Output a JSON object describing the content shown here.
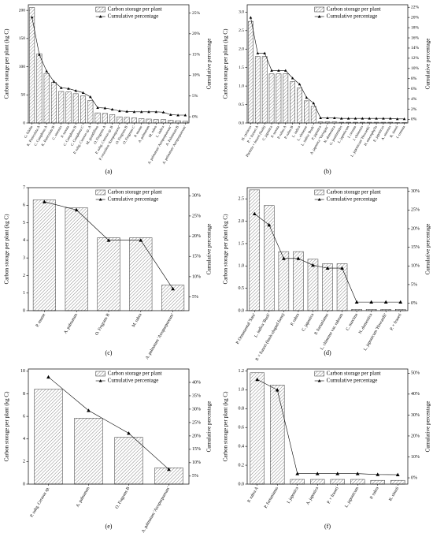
{
  "chart_data": [
    {
      "type": "bar-line",
      "caption": "(a)",
      "y_label": "Carbon storage per plant (kg C)",
      "y2_label": "Cumulative percentage",
      "categories": [
        "G. biloba",
        "K. Paniculata A",
        "C. Camphora A",
        "K. Paniculata B",
        "C. sinensis",
        "P. serrata",
        "C. Camphora B",
        "C. Camphora C",
        "P. subg. Cerasus sp. A",
        "M. grandiflora",
        "O. Fragrans A",
        "P. subg. Cerasus sp. B",
        "P. cerasifera 'Atropurpurea'",
        "O. Fragrans B",
        "O. Fragrans C",
        "P. mume",
        "A. palmatum",
        "M. rubra",
        "L. indica",
        "A. palmatum 'Atropurpureum'",
        "A. Palmatum B",
        "A. palmatum 'Atropurpureum'"
      ],
      "series": [
        {
          "name": "Carbon storage per plant",
          "color": "#555555",
          "values": [
            205,
            123,
            88,
            72,
            56,
            55,
            52,
            48,
            40,
            18,
            17,
            15,
            11,
            10,
            9,
            8,
            7,
            6,
            6,
            5,
            4,
            3
          ]
        },
        {
          "name": "Cumulative percentage",
          "color": "#000000",
          "axis": "y2",
          "values": [
            24,
            15,
            11,
            8.5,
            7,
            6.8,
            6.3,
            5.8,
            4.8,
            2.2,
            2.1,
            1.8,
            1.4,
            1.3,
            1.2,
            1.2,
            1.2,
            1.2,
            1.1,
            0.5,
            0.4,
            0.4
          ]
        }
      ],
      "ylim": [
        0,
        210
      ],
      "yticks": [
        0,
        50,
        100,
        150,
        200
      ],
      "y2lim": [
        -1.5,
        27
      ],
      "y2ticks": [
        {
          "value": 0,
          "label": "0%"
        },
        {
          "value": 5,
          "label": "5%"
        },
        {
          "value": 10,
          "label": "10%"
        },
        {
          "value": 15,
          "label": "15%"
        },
        {
          "value": 20,
          "label": "20%"
        },
        {
          "value": 25,
          "label": "25%"
        }
      ]
    },
    {
      "type": "bar-line",
      "caption": "(b)",
      "y_label": "Carbon storage per plant (kg C)",
      "y2_label": "Cumulative percentage",
      "categories": [
        "H. syriacus",
        "P. × fraseri A",
        "Photinia × fraseri (bush)",
        "C. japonica",
        "P. serrata",
        "P. rubra A",
        "P. rubra B",
        "L. indica",
        "L. chinense",
        "L. indica 'Bush'",
        "P. japonica",
        "A. japonica 'Variegata'",
        "N. domestica",
        "G. jasminoides",
        "L. japonicum",
        "I. crenata",
        "J. chinensis",
        "L. japonicum 'Howardii'",
        "H. macrophylla",
        "E. japonicus",
        "A. sinensis",
        "R. simsii",
        "I. cornuta"
      ],
      "series": [
        {
          "name": "Carbon storage per plant",
          "color": "#555555",
          "values": [
            2.75,
            1.8,
            1.8,
            1.33,
            1.33,
            1.33,
            1.12,
            0.95,
            0.6,
            0.45,
            0.03,
            0.03,
            0.03,
            0.02,
            0.02,
            0.02,
            0.02,
            0.02,
            0.02,
            0.02,
            0.02,
            0.01,
            0.01
          ]
        },
        {
          "name": "Cumulative percentage",
          "color": "#000000",
          "axis": "y2",
          "values": [
            20,
            13,
            13,
            9.6,
            9.6,
            9.6,
            8.1,
            6.9,
            4.3,
            3.2,
            0.3,
            0.3,
            0.3,
            0.2,
            0.2,
            0.2,
            0.2,
            0.2,
            0.2,
            0.2,
            0.2,
            0.1,
            0.1
          ]
        }
      ],
      "ylim": [
        0,
        3.2
      ],
      "yticks": [
        {
          "value": 0,
          "label": "0.0"
        },
        0.5,
        {
          "value": 1,
          "label": "1.0"
        },
        1.5,
        {
          "value": 2,
          "label": "2.0"
        },
        2.5,
        {
          "value": 3,
          "label": "3.0"
        }
      ],
      "y2lim": [
        -0.7,
        22.5
      ],
      "y2ticks": [
        {
          "value": 0,
          "label": "0%"
        },
        {
          "value": 2,
          "label": "2%"
        },
        {
          "value": 4,
          "label": "4%"
        },
        {
          "value": 6,
          "label": "6%"
        },
        {
          "value": 8,
          "label": "8%"
        },
        {
          "value": 10,
          "label": "10%"
        },
        {
          "value": 12,
          "label": "12%"
        },
        {
          "value": 14,
          "label": "14%"
        },
        {
          "value": 16,
          "label": "16%"
        },
        {
          "value": 18,
          "label": "18%"
        },
        {
          "value": 20,
          "label": "20%"
        },
        {
          "value": 22,
          "label": "22%"
        }
      ]
    },
    {
      "type": "bar-line",
      "caption": "(c)",
      "y_label": "Carbon storage per plant (kg C)",
      "y2_label": "Cumulative percentage",
      "categories": [
        "P. mume",
        "A. palmatum",
        "O. Fragrans B",
        "M. rubra",
        "A. palmatum 'Atropurpureum'"
      ],
      "series": [
        {
          "name": "Carbon storage per plant",
          "color": "#555555",
          "values": [
            6.3,
            5.85,
            4.15,
            4.15,
            1.45
          ]
        },
        {
          "name": "Cumulative percentage",
          "color": "#000000",
          "axis": "y2",
          "values": [
            28.5,
            26.5,
            19,
            19,
            7
          ]
        }
      ],
      "ylim": [
        0,
        7
      ],
      "yticks": [
        0,
        1,
        2,
        3,
        4,
        5,
        6,
        7
      ],
      "y2lim": [
        1.6,
        32
      ],
      "y2ticks": [
        {
          "value": 5,
          "label": "5%"
        },
        {
          "value": 10,
          "label": "10%"
        },
        {
          "value": 15,
          "label": "15%"
        },
        {
          "value": 20,
          "label": "20%"
        },
        {
          "value": 25,
          "label": "25%"
        },
        {
          "value": 30,
          "label": "30%"
        }
      ]
    },
    {
      "type": "bar-line",
      "caption": "(d)",
      "y_label": "Carbon storage per plant (kg C)",
      "y2_label": "Cumulative percentage",
      "categories": [
        "P. Ornamental 'Sata'",
        "L. indica 'Bush'",
        "P. × fraseri (bush-shaped form)",
        "P. rubra",
        "C. japonica",
        "P. fortunianus",
        "L. chinense var. rubrum",
        "C. maxima",
        "N. domestica",
        "L. japonicum 'Howardii'",
        "P. × fraseri"
      ],
      "series": [
        {
          "name": "Carbon storage per plant",
          "color": "#555555",
          "values": [
            2.7,
            2.35,
            1.32,
            1.32,
            1.15,
            1.05,
            1.05,
            0.03,
            0.03,
            0.03,
            0.03
          ]
        },
        {
          "name": "Cumulative percentage",
          "color": "#000000",
          "axis": "y2",
          "values": [
            24,
            21,
            12,
            12,
            10.2,
            9.4,
            9.4,
            0.3,
            0.3,
            0.3,
            0.3
          ]
        }
      ],
      "ylim": [
        0,
        2.75
      ],
      "yticks": [
        {
          "value": 0,
          "label": "0.0"
        },
        0.5,
        {
          "value": 1,
          "label": "1.0"
        },
        1.5,
        {
          "value": 2,
          "label": "2.0"
        },
        2.5
      ],
      "y2lim": [
        -2,
        31
      ],
      "y2ticks": [
        {
          "value": 0,
          "label": "0%"
        },
        {
          "value": 5,
          "label": "5%"
        },
        {
          "value": 10,
          "label": "10%"
        },
        {
          "value": 15,
          "label": "15%"
        },
        {
          "value": 20,
          "label": "20%"
        },
        {
          "value": 25,
          "label": "25%"
        },
        {
          "value": 30,
          "label": "30%"
        }
      ]
    },
    {
      "type": "bar-line",
      "caption": "(e)",
      "y_label": "Carbon storage per plant (kg C)",
      "y2_label": "Cumulative percentage",
      "categories": [
        "P. subg. Cerasus sp.",
        "A. palmatum",
        "O. Fragrans B",
        "A. palmatum 'Atropurpureum'"
      ],
      "series": [
        {
          "name": "Carbon storage per plant",
          "color": "#555555",
          "values": [
            8.4,
            5.85,
            4.15,
            1.45
          ]
        },
        {
          "name": "Cumulative percentage",
          "color": "#000000",
          "axis": "y2",
          "values": [
            42,
            29.5,
            21,
            7.5
          ]
        }
      ],
      "ylim": [
        0,
        10.2
      ],
      "yticks": [
        0,
        2,
        4,
        6,
        8,
        10
      ],
      "y2lim": [
        2,
        45
      ],
      "y2ticks": [
        {
          "value": 5,
          "label": "5%"
        },
        {
          "value": 10,
          "label": "10%"
        },
        {
          "value": 15,
          "label": "15%"
        },
        {
          "value": 20,
          "label": "20%"
        },
        {
          "value": 25,
          "label": "25%"
        },
        {
          "value": 30,
          "label": "30%"
        },
        {
          "value": 35,
          "label": "35%"
        },
        {
          "value": 40,
          "label": "40%"
        }
      ]
    },
    {
      "type": "bar-line",
      "caption": "(f)",
      "y_label": "Carbon storage per plant (kg C)",
      "y2_label": "Cumulative percentage",
      "categories": [
        "P. rubra A",
        "P. fortunianus",
        "I. japonica",
        "A. japonica",
        "P. × fraseri",
        "L. japonicum",
        "P. rubra",
        "R. simsii"
      ],
      "series": [
        {
          "name": "Carbon storage per plant",
          "color": "#555555",
          "values": [
            1.18,
            1.05,
            0.05,
            0.05,
            0.05,
            0.05,
            0.04,
            0.04
          ]
        },
        {
          "name": "Cumulative percentage",
          "color": "#000000",
          "axis": "y2",
          "values": [
            47,
            42,
            2,
            2,
            2,
            2,
            1.6,
            1.5
          ]
        }
      ],
      "ylim": [
        0,
        1.22
      ],
      "yticks": [
        {
          "value": 0,
          "label": "0.0"
        },
        0.2,
        0.4,
        0.6,
        0.8,
        {
          "value": 1,
          "label": "1.0"
        },
        1.2
      ],
      "y2lim": [
        -3,
        52
      ],
      "y2ticks": [
        {
          "value": 0,
          "label": "0%"
        },
        {
          "value": 10,
          "label": "10%"
        },
        {
          "value": 20,
          "label": "20%"
        },
        {
          "value": 30,
          "label": "30%"
        },
        {
          "value": 40,
          "label": "40%"
        },
        {
          "value": 50,
          "label": "50%"
        }
      ]
    }
  ]
}
